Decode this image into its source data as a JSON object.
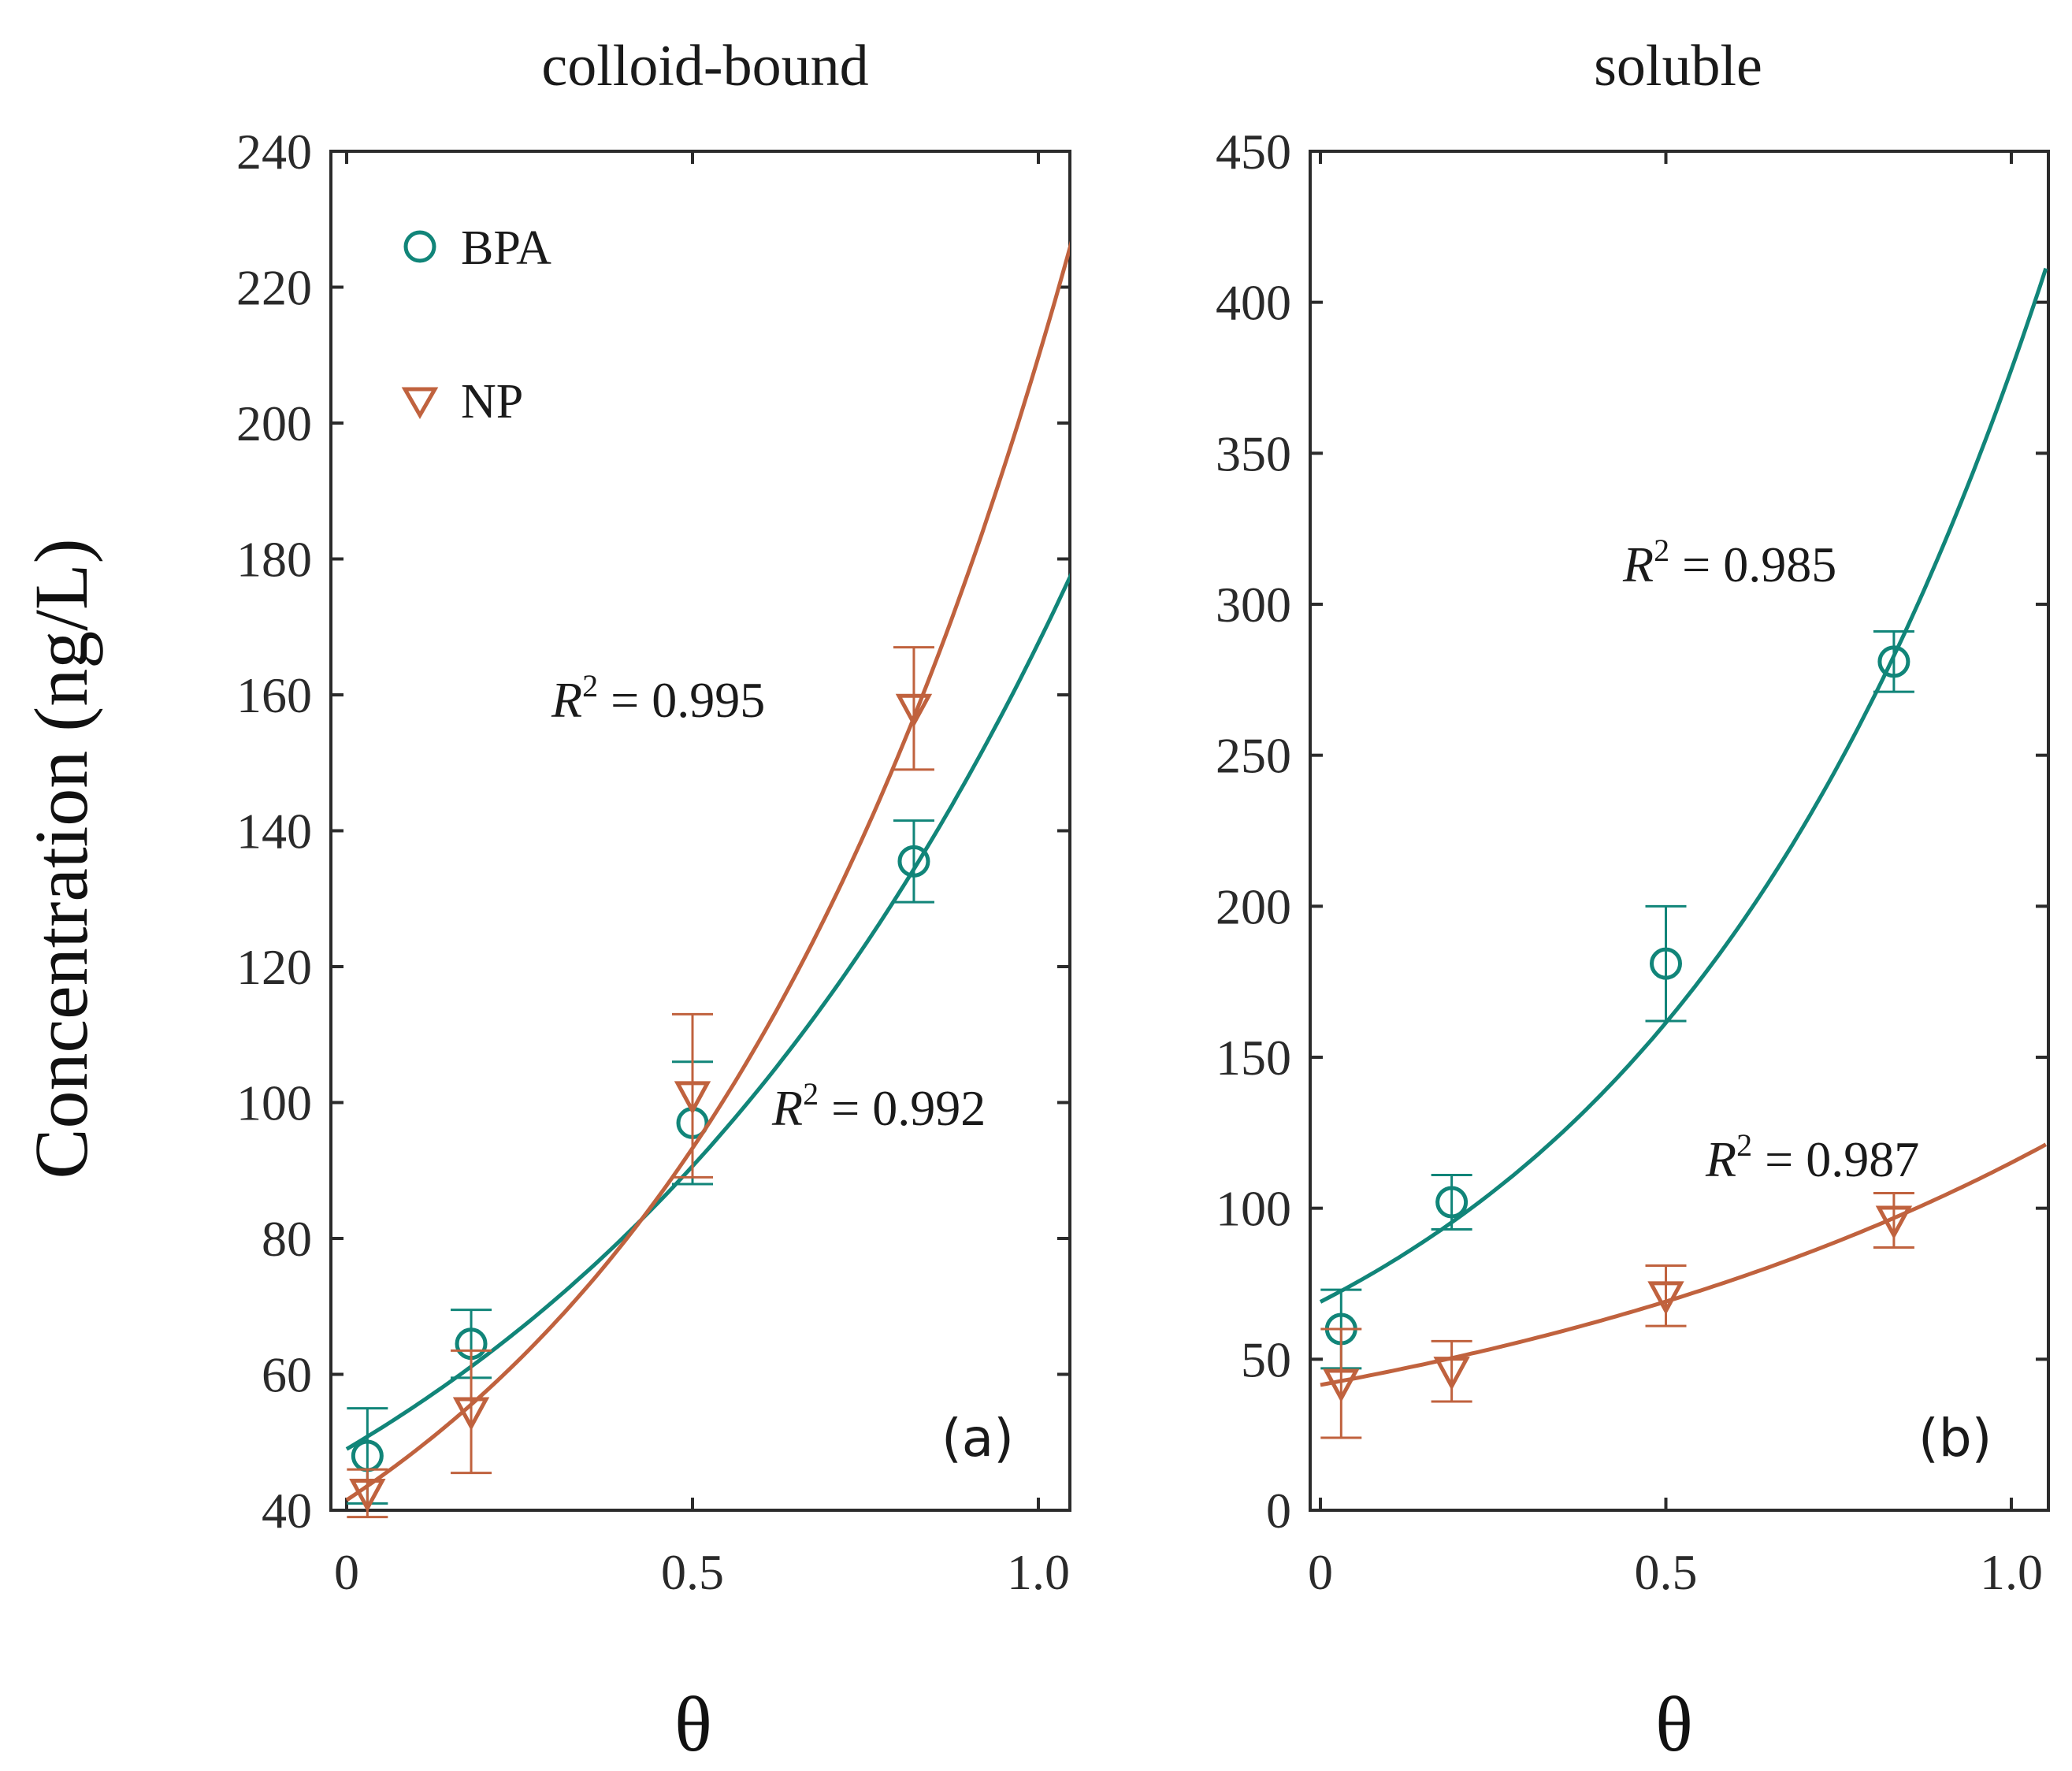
{
  "figure": {
    "ylabel": "Concentration (ng/L)"
  },
  "chart_data": [
    {
      "type": "scatter",
      "panel": "a",
      "panel_tag": "(a)",
      "title": "colloid-bound",
      "xlabel": "θ",
      "ylabel": "Concentration (ng/L)",
      "xlim": [
        0,
        1.0
      ],
      "ylim": [
        40,
        240
      ],
      "x_ticks": [
        0,
        0.5,
        1.0
      ],
      "x_tick_labels": [
        "0",
        "0.5",
        "1.0"
      ],
      "y_ticks": [
        40,
        60,
        80,
        100,
        120,
        140,
        160,
        180,
        200,
        220,
        240
      ],
      "y_tick_labels": [
        "40",
        "60",
        "80",
        "100",
        "120",
        "140",
        "160",
        "180",
        "200",
        "220",
        "240"
      ],
      "legend": [
        {
          "label": "BPA",
          "marker": "circle",
          "color": "#118579"
        },
        {
          "label": "NP",
          "marker": "triangle-down",
          "color": "#c0623e"
        }
      ],
      "series": [
        {
          "name": "BPA",
          "color": "#118579",
          "marker": "circle",
          "x": [
            0.03,
            0.18,
            0.5,
            0.82
          ],
          "y": [
            48,
            64.5,
            97,
            135.5
          ],
          "err": [
            7,
            5,
            9,
            6
          ],
          "fit": {
            "type": "exponential",
            "a": 49,
            "b": 1.23,
            "x_range": [
              0,
              1.05
            ]
          },
          "r2_label": "R² = 0.992",
          "r2_text": {
            "R": "R",
            "sup": "2",
            "rest": " = 0.992"
          }
        },
        {
          "name": "NP",
          "color": "#c0623e",
          "marker": "triangle-down",
          "x": [
            0.03,
            0.18,
            0.5,
            0.82
          ],
          "y": [
            42.5,
            54.5,
            101,
            158
          ],
          "err": [
            3.5,
            9,
            12,
            9
          ],
          "fit": {
            "type": "exponential",
            "a": 41.5,
            "b": 1.62,
            "x_range": [
              0,
              1.05
            ]
          },
          "r2_label": "R² = 0.995",
          "r2_text": {
            "R": "R",
            "sup": "2",
            "rest": " = 0.995"
          }
        }
      ]
    },
    {
      "type": "scatter",
      "panel": "b",
      "panel_tag": "(b)",
      "title": "soluble",
      "xlabel": "θ",
      "xlim": [
        0,
        1.0
      ],
      "ylim": [
        0,
        450
      ],
      "x_ticks": [
        0,
        0.5,
        1.0
      ],
      "x_tick_labels": [
        "0",
        "0.5",
        "1.0"
      ],
      "y_ticks": [
        0,
        50,
        100,
        150,
        200,
        250,
        300,
        350,
        400,
        450
      ],
      "y_tick_labels": [
        "0",
        "50",
        "100",
        "150",
        "200",
        "250",
        "300",
        "350",
        "400",
        "450"
      ],
      "series": [
        {
          "name": "BPA",
          "color": "#118579",
          "marker": "circle",
          "x": [
            0.03,
            0.19,
            0.5,
            0.83
          ],
          "y": [
            60,
            102,
            181,
            281
          ],
          "err": [
            13,
            9,
            19,
            10
          ],
          "fit": {
            "type": "exponential",
            "a": 69,
            "b": 1.7,
            "x_range": [
              0,
              1.05
            ]
          },
          "r2_label": "R² = 0.985",
          "r2_text": {
            "R": "R",
            "sup": "2",
            "rest": " = 0.985"
          }
        },
        {
          "name": "NP",
          "color": "#c0623e",
          "marker": "triangle-down",
          "x": [
            0.03,
            0.19,
            0.5,
            0.83
          ],
          "y": [
            42,
            46,
            71,
            96
          ],
          "err": [
            18,
            10,
            10,
            9
          ],
          "fit": {
            "type": "exponential",
            "a": 41.5,
            "b": 1.02,
            "x_range": [
              0,
              1.05
            ]
          },
          "r2_label": "R² = 0.987",
          "r2_text": {
            "R": "R",
            "sup": "2",
            "rest": " = 0.987"
          }
        }
      ]
    }
  ]
}
